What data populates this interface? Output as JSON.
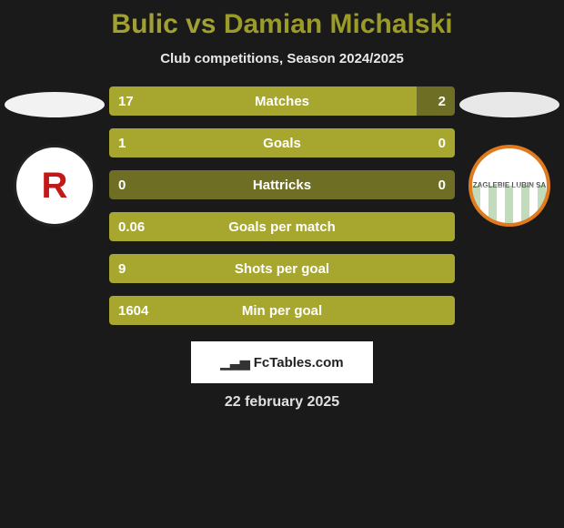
{
  "title": {
    "player1": "Bulic",
    "vs": "vs",
    "player2": "Damian Michalski",
    "player1_color": "#a7a62e",
    "player2_color": "#a7a62e"
  },
  "subtitle": "Club competitions, Season 2024/2025",
  "teams": {
    "left": {
      "ellipse_color": "#f2f2f2",
      "crest_bg": "#ffffff",
      "crest_letter": "R",
      "crest_letter_color": "#c21818",
      "crest_border": "#1a1a1a"
    },
    "right": {
      "ellipse_color": "#e8e8e8",
      "crest_border": "#e07a1f",
      "crest_text": "ZAGLEBIE LUBIN SA"
    }
  },
  "stats": {
    "bar_colors": {
      "left_strong": "#a7a62e",
      "left_dim": "#6e6e24",
      "right_strong": "#a7a62e",
      "right_dim": "#6e6e24",
      "neutral": "#6e6e24"
    },
    "rows": [
      {
        "label": "Matches",
        "left": "17",
        "right": "2",
        "left_pct": 89,
        "right_pct": 11,
        "left_color": "#a7a62e",
        "right_color": "#6e6e24"
      },
      {
        "label": "Goals",
        "left": "1",
        "right": "0",
        "left_pct": 100,
        "right_pct": 0,
        "left_color": "#a7a62e",
        "right_color": "#6e6e24"
      },
      {
        "label": "Hattricks",
        "left": "0",
        "right": "0",
        "left_pct": 0,
        "right_pct": 0,
        "left_color": "#6e6e24",
        "right_color": "#6e6e24",
        "full_neutral": true
      },
      {
        "label": "Goals per match",
        "left": "0.06",
        "right": "",
        "left_pct": 100,
        "right_pct": 0,
        "left_color": "#a7a62e",
        "right_color": "#6e6e24"
      },
      {
        "label": "Shots per goal",
        "left": "9",
        "right": "",
        "left_pct": 100,
        "right_pct": 0,
        "left_color": "#a7a62e",
        "right_color": "#6e6e24"
      },
      {
        "label": "Min per goal",
        "left": "1604",
        "right": "",
        "left_pct": 100,
        "right_pct": 0,
        "left_color": "#a7a62e",
        "right_color": "#6e6e24"
      }
    ]
  },
  "watermark": {
    "text": "FcTables.com",
    "icon": "📊"
  },
  "date": "22 february 2025",
  "colors": {
    "page_bg": "#1a1a1a",
    "text": "#ffffff"
  }
}
